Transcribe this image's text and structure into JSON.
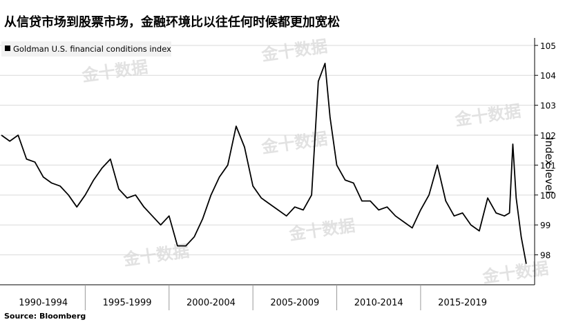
{
  "chart_data": {
    "type": "line",
    "title": "从信贷市场到股票市场，金融环境比以往任何时候都更加宽松",
    "y_label": "Index level",
    "source": "Source: Bloomberg",
    "watermark": "金十数据",
    "x": [
      1990.0,
      1990.5,
      1991.0,
      1991.5,
      1992.0,
      1992.5,
      1993.0,
      1993.5,
      1994.0,
      1994.5,
      1995.0,
      1995.5,
      1996.0,
      1996.5,
      1997.0,
      1997.5,
      1998.0,
      1998.5,
      1999.0,
      1999.5,
      2000.0,
      2000.5,
      2001.0,
      2001.5,
      2002.0,
      2002.5,
      2003.0,
      2003.5,
      2004.0,
      2004.5,
      2005.0,
      2005.5,
      2006.0,
      2006.5,
      2007.0,
      2007.5,
      2008.0,
      2008.5,
      2008.9,
      2009.3,
      2009.6,
      2010.0,
      2010.5,
      2011.0,
      2011.5,
      2012.0,
      2012.5,
      2013.0,
      2013.5,
      2014.0,
      2014.5,
      2015.0,
      2015.5,
      2016.0,
      2016.5,
      2017.0,
      2017.5,
      2018.0,
      2018.5,
      2019.0,
      2019.5,
      2020.0,
      2020.3,
      2020.5,
      2020.7,
      2021.0,
      2021.3
    ],
    "series": [
      {
        "name": "Goldman U.S. financial conditions index",
        "color": "#000000",
        "values": [
          102.0,
          101.8,
          102.0,
          101.2,
          101.1,
          100.6,
          100.4,
          100.3,
          100.0,
          99.6,
          100.0,
          100.5,
          100.9,
          101.2,
          100.2,
          99.9,
          100.0,
          99.6,
          99.3,
          99.0,
          99.3,
          98.3,
          98.3,
          98.6,
          99.2,
          100.0,
          100.6,
          101.0,
          102.3,
          101.6,
          100.3,
          99.9,
          99.7,
          99.5,
          99.3,
          99.6,
          99.5,
          100.0,
          103.8,
          104.4,
          102.6,
          101.0,
          100.5,
          100.4,
          99.8,
          99.8,
          99.5,
          99.6,
          99.3,
          99.1,
          98.9,
          99.5,
          100.0,
          101.0,
          99.8,
          99.3,
          99.4,
          99.0,
          98.8,
          99.9,
          99.4,
          99.3,
          99.4,
          101.7,
          99.9,
          98.6,
          97.7
        ]
      }
    ],
    "xlim": [
      1990,
      2021.8
    ],
    "xticks": [
      {
        "value": 1992.5,
        "label": "1990-1994"
      },
      {
        "value": 1997.5,
        "label": "1995-1999"
      },
      {
        "value": 2002.5,
        "label": "2000-2004"
      },
      {
        "value": 2007.5,
        "label": "2005-2009"
      },
      {
        "value": 2012.5,
        "label": "2010-2014"
      },
      {
        "value": 2017.5,
        "label": "2015-2019"
      }
    ],
    "ylim": [
      97,
      105.25
    ],
    "yticks": [
      98,
      99,
      100,
      101,
      102,
      103,
      104,
      105
    ],
    "grid": true
  }
}
